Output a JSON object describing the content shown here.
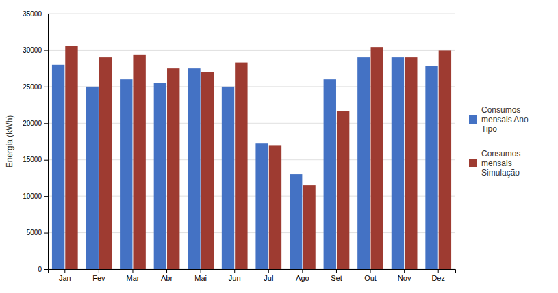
{
  "chart_data": {
    "type": "bar",
    "categories": [
      "Jan",
      "Fev",
      "Mar",
      "Abr",
      "Mai",
      "Jun",
      "Jul",
      "Ago",
      "Set",
      "Out",
      "Nov",
      "Dez"
    ],
    "series": [
      {
        "name": "Consumos\nmensais Ano\nTipo",
        "color": "#4472C4",
        "values": [
          28000,
          25000,
          26000,
          25500,
          27500,
          25000,
          17200,
          13000,
          26000,
          29000,
          29000,
          27800
        ]
      },
      {
        "name": "Consumos\nmensais\nSimulação",
        "color": "#9E3B31",
        "values": [
          30600,
          29000,
          29400,
          27500,
          27000,
          28300,
          16900,
          11500,
          21700,
          30400,
          29000,
          30000
        ]
      }
    ],
    "ylabel": "Energia (kWh)",
    "ylim": [
      0,
      35000
    ],
    "yticks": [
      0,
      5000,
      10000,
      15000,
      20000,
      25000,
      30000,
      35000
    ],
    "grid": true,
    "legend": "right"
  }
}
